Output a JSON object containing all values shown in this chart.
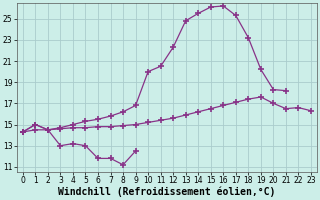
{
  "xlabel": "Windchill (Refroidissement éolien,°C)",
  "bg_color": "#cceee8",
  "grid_color": "#aacccc",
  "line_color": "#883388",
  "marker": "+",
  "markersize": 4,
  "markeredgewidth": 1.2,
  "linewidth": 0.9,
  "xlim": [
    -0.5,
    23.5
  ],
  "ylim": [
    10.5,
    26.5
  ],
  "yticks": [
    11,
    13,
    15,
    17,
    19,
    21,
    23,
    25
  ],
  "xticks": [
    0,
    1,
    2,
    3,
    4,
    5,
    6,
    7,
    8,
    9,
    10,
    11,
    12,
    13,
    14,
    15,
    16,
    17,
    18,
    19,
    20,
    21,
    22,
    23
  ],
  "line1_x": [
    0,
    1,
    2,
    3,
    4,
    5,
    6,
    7,
    8,
    9
  ],
  "line1_y": [
    14.3,
    15.0,
    14.5,
    13.0,
    13.2,
    13.0,
    11.8,
    11.8,
    11.2,
    12.5
  ],
  "line2_x": [
    0,
    1,
    2,
    3,
    4,
    5,
    6,
    7,
    8,
    9,
    10,
    11,
    12,
    13,
    14,
    15,
    16,
    17,
    18,
    19,
    20,
    21,
    22,
    23
  ],
  "line2_y": [
    14.3,
    14.5,
    14.5,
    14.6,
    14.7,
    14.7,
    14.8,
    14.8,
    14.9,
    15.0,
    15.2,
    15.4,
    15.6,
    15.9,
    16.2,
    16.5,
    16.8,
    17.1,
    17.4,
    17.6,
    17.0,
    16.5,
    16.6,
    16.3
  ],
  "line3_x": [
    0,
    1,
    2,
    3,
    4,
    5,
    6,
    7,
    8,
    9,
    10,
    11,
    12,
    13,
    14,
    15,
    16,
    17,
    18,
    19,
    20,
    21
  ],
  "line3_y": [
    14.3,
    15.0,
    14.5,
    14.7,
    15.0,
    15.3,
    15.5,
    15.8,
    16.2,
    16.8,
    20.0,
    20.5,
    22.3,
    24.8,
    25.5,
    26.1,
    26.2,
    25.3,
    23.2,
    20.2,
    18.3,
    18.2
  ],
  "tick_fontsize": 5.5,
  "xlabel_fontsize": 7.0
}
